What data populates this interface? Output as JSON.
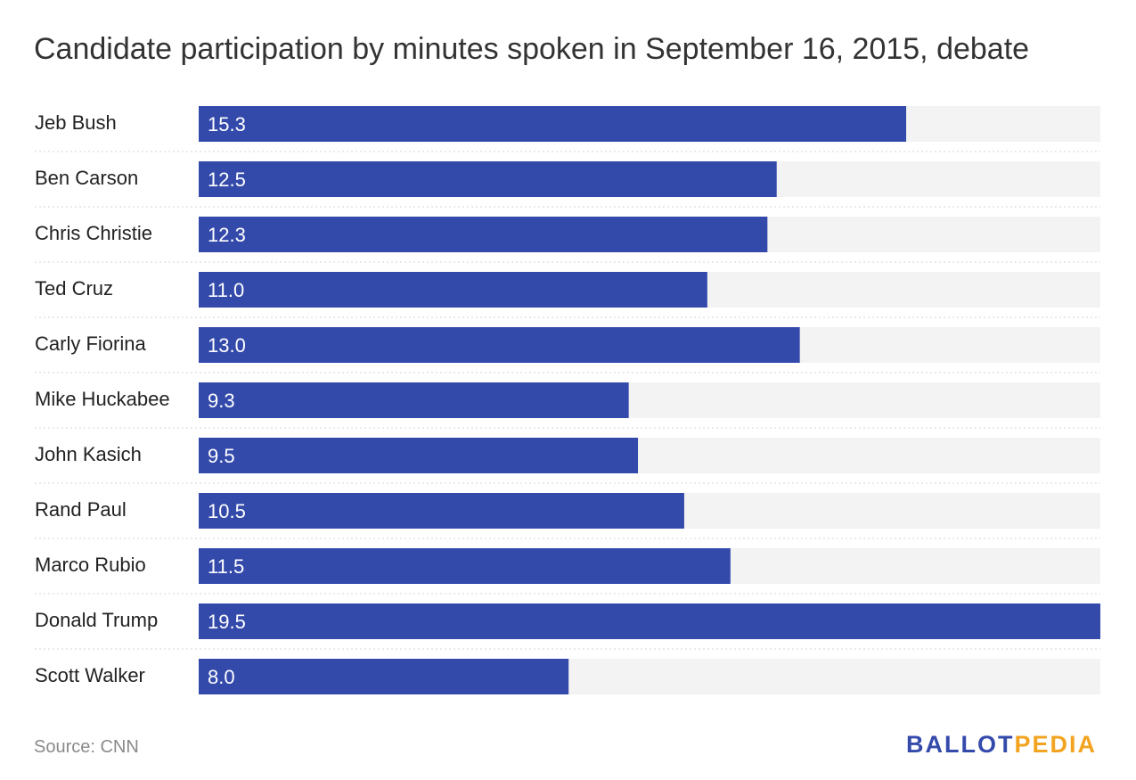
{
  "chart_data": {
    "type": "bar",
    "orientation": "horizontal",
    "title": "Candidate participation by minutes spoken in September 16, 2015, debate",
    "categories": [
      "Jeb Bush",
      "Ben Carson",
      "Chris Christie",
      "Ted Cruz",
      "Carly Fiorina",
      "Mike Huckabee",
      "John Kasich",
      "Rand Paul",
      "Marco Rubio",
      "Donald Trump",
      "Scott Walker"
    ],
    "values": [
      15.3,
      12.5,
      12.3,
      11.0,
      13.0,
      9.3,
      9.5,
      10.5,
      11.5,
      19.5,
      8.0
    ],
    "value_labels": [
      "15.3",
      "12.5",
      "12.3",
      "11.0",
      "13.0",
      "9.3",
      "9.5",
      "10.5",
      "11.5",
      "19.5",
      "8.0"
    ],
    "xlim": [
      0,
      19.5
    ],
    "grid": false,
    "colors": {
      "bar": "#344aab",
      "track": "#f3f3f3",
      "separator": "#d6d6d6"
    }
  },
  "footer": {
    "source": "Source: CNN",
    "logo_part1": "BALLOT",
    "logo_part2": "PEDIA",
    "logo_color1": "#344aab",
    "logo_color2": "#f2a421"
  }
}
